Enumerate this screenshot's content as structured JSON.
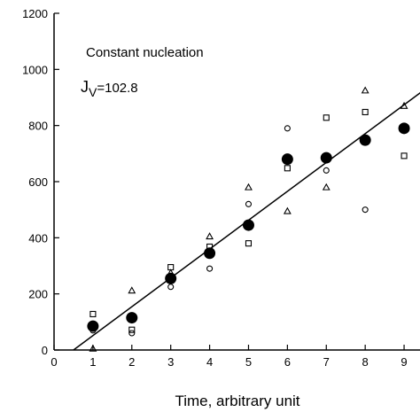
{
  "chart_data": {
    "type": "scatter",
    "xlabel": "Time, arbitrary unit",
    "ylabel": "",
    "xlim": [
      0,
      9.5
    ],
    "ylim": [
      0,
      1200
    ],
    "x_ticks": [
      0,
      1,
      2,
      3,
      4,
      5,
      6,
      7,
      8,
      9
    ],
    "y_ticks": [
      0,
      200,
      400,
      600,
      800,
      1000,
      1200
    ],
    "x_tick_labels": [
      "0",
      "1",
      "2",
      "3",
      "4",
      "5",
      "6",
      "7",
      "8",
      "9"
    ],
    "y_tick_labels": [
      "0",
      "200",
      "400",
      "600",
      "800",
      "1000",
      "1200"
    ],
    "annotations": {
      "line1": "Constant nucleation",
      "line2_main": "J",
      "line2_sub": "V",
      "line2_rest": "=102.8"
    },
    "series": [
      {
        "marker": "filled-circle",
        "x": [
          1,
          2,
          3,
          4,
          5,
          6,
          7,
          8,
          9
        ],
        "y": [
          85,
          115,
          255,
          345,
          445,
          680,
          685,
          748,
          790
        ]
      },
      {
        "marker": "open-triangle",
        "x": [
          1,
          2,
          3,
          4,
          5,
          6,
          7,
          8,
          9
        ],
        "y": [
          5,
          212,
          275,
          405,
          580,
          495,
          580,
          925,
          870
        ]
      },
      {
        "marker": "open-square",
        "x": [
          1,
          2,
          3,
          4,
          5,
          6,
          7,
          8,
          9
        ],
        "y": [
          128,
          72,
          295,
          368,
          380,
          648,
          828,
          848,
          692
        ]
      },
      {
        "marker": "open-circle",
        "x": [
          1,
          2,
          3,
          4,
          5,
          6,
          7,
          8,
          9
        ],
        "y": [
          70,
          60,
          225,
          290,
          520,
          790,
          640,
          500,
          790
        ]
      }
    ],
    "fit_line": {
      "slope": 102.8,
      "intercept": -51.4,
      "x_range": [
        0.5,
        9.5
      ]
    },
    "grid": false
  }
}
